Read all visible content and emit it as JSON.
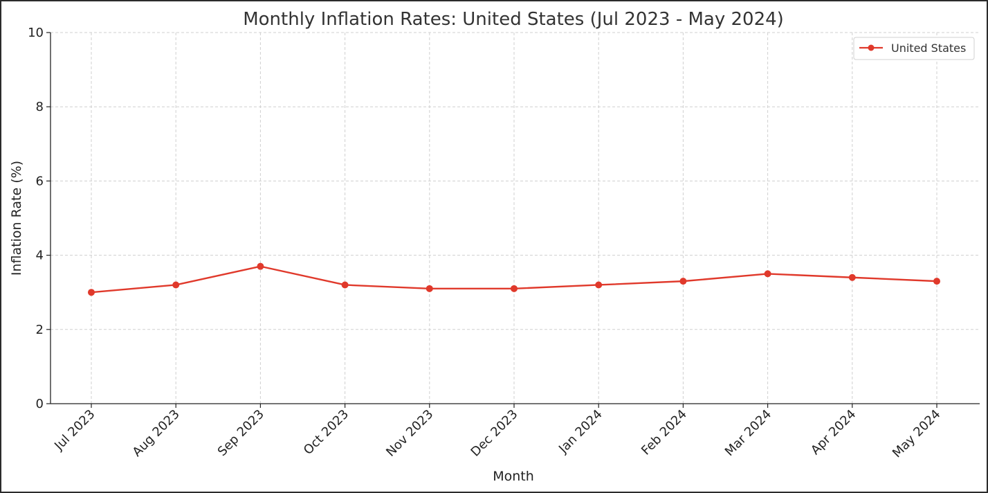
{
  "chart_data": {
    "type": "line",
    "title": "Monthly Inflation Rates: United States (Jul 2023 - May 2024)",
    "xlabel": "Month",
    "ylabel": "Inflation Rate (%)",
    "categories": [
      "Jul 2023",
      "Aug 2023",
      "Sep 2023",
      "Oct 2023",
      "Nov 2023",
      "Dec 2023",
      "Jan 2024",
      "Feb 2024",
      "Mar 2024",
      "Apr 2024",
      "May 2024"
    ],
    "series": [
      {
        "name": "United States",
        "color": "#e0392b",
        "values": [
          3.0,
          3.2,
          3.7,
          3.2,
          3.1,
          3.1,
          3.2,
          3.3,
          3.5,
          3.4,
          3.3
        ]
      }
    ],
    "ylim": [
      0,
      10
    ],
    "yticks": [
      0,
      2,
      4,
      6,
      8,
      10
    ],
    "grid": true,
    "legend_position": "top-right"
  }
}
